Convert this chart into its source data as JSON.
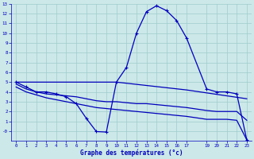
{
  "title": "Graphe des températures (°c)",
  "bg_color": "#cce8e8",
  "grid_color": "#a0cccc",
  "line_color": "#0000bb",
  "xlim": [
    -0.5,
    23.5
  ],
  "ylim": [
    -1,
    13
  ],
  "xticks": [
    0,
    1,
    2,
    3,
    4,
    5,
    6,
    7,
    8,
    9,
    10,
    11,
    12,
    13,
    14,
    15,
    16,
    17,
    19,
    20,
    21,
    22,
    23
  ],
  "yticks": [
    0,
    1,
    2,
    3,
    4,
    5,
    6,
    7,
    8,
    9,
    10,
    11,
    12,
    13
  ],
  "ytick_labels": [
    "-0",
    "1",
    "2",
    "3",
    "4",
    "5",
    "6",
    "7",
    "8",
    "9",
    "10",
    "11",
    "12",
    "13"
  ],
  "line1_x": [
    0,
    1,
    2,
    3,
    4,
    5,
    6,
    7,
    8,
    9,
    10,
    11,
    12,
    13,
    14,
    15,
    16,
    17,
    19,
    20,
    21,
    22,
    23
  ],
  "line1_y": [
    5.0,
    4.5,
    4.0,
    4.0,
    3.8,
    3.5,
    2.8,
    1.3,
    -0.05,
    -0.1,
    5.0,
    6.5,
    10.0,
    12.2,
    12.8,
    12.3,
    11.3,
    9.5,
    4.3,
    4.0,
    4.0,
    3.8,
    -0.9
  ],
  "line2_x": [
    0,
    10,
    17,
    23
  ],
  "line2_y": [
    5.0,
    5.0,
    4.2,
    3.3
  ],
  "line3_x": [
    0,
    1,
    2,
    3,
    4,
    5,
    6,
    7,
    8,
    9,
    10,
    11,
    12,
    13,
    14,
    15,
    16,
    17,
    19,
    20,
    21,
    22,
    23
  ],
  "line3_y": [
    4.8,
    4.3,
    4.0,
    3.8,
    3.7,
    3.6,
    3.5,
    3.3,
    3.1,
    3.0,
    3.0,
    2.9,
    2.8,
    2.8,
    2.7,
    2.6,
    2.5,
    2.4,
    2.1,
    2.0,
    2.0,
    2.0,
    1.1
  ],
  "line4_x": [
    0,
    1,
    2,
    3,
    4,
    5,
    6,
    7,
    8,
    9,
    10,
    11,
    12,
    13,
    14,
    15,
    16,
    17,
    19,
    20,
    21,
    22,
    23
  ],
  "line4_y": [
    4.5,
    4.0,
    3.7,
    3.4,
    3.2,
    3.0,
    2.8,
    2.6,
    2.4,
    2.3,
    2.2,
    2.1,
    2.0,
    1.9,
    1.8,
    1.7,
    1.6,
    1.5,
    1.2,
    1.2,
    1.2,
    1.1,
    -0.9
  ]
}
